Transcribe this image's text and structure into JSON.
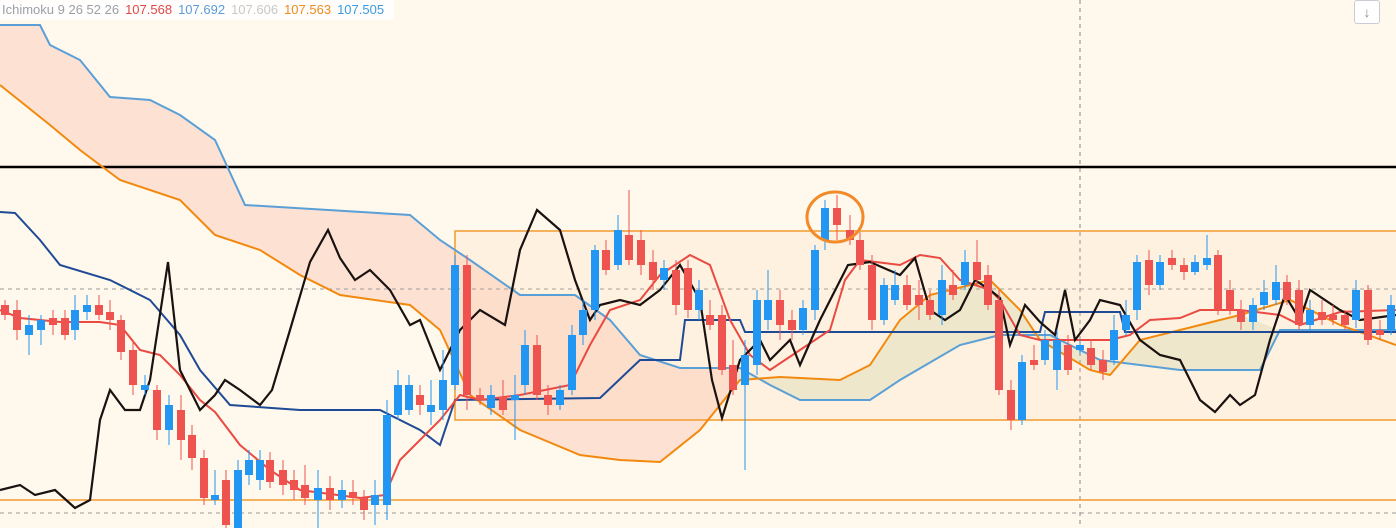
{
  "legend": {
    "indicator": "Ichimoku 9 26 52 26",
    "values": [
      "107.568",
      "107.692",
      "107.606",
      "107.563",
      "107.505"
    ]
  },
  "controls": {
    "scroll_down": "↓"
  }
}
